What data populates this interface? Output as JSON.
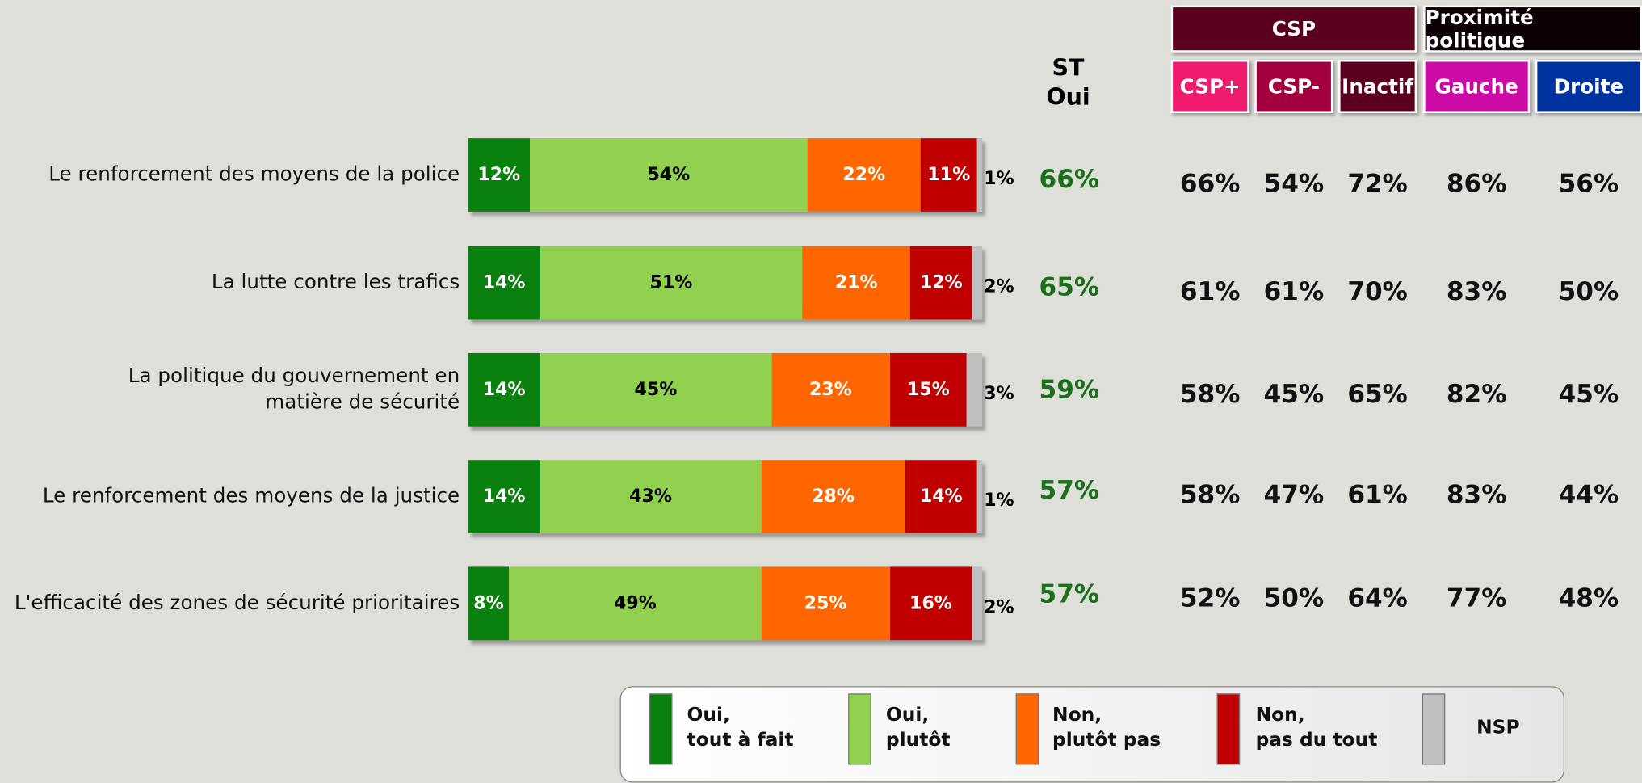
{
  "chart_data": {
    "type": "bar",
    "orientation": "horizontal",
    "stacked": true,
    "categories": [
      "Le renforcement des moyens de la police",
      "La lutte contre les trafics",
      "La politique du gouvernement en\nmatière de sécurité",
      "Le renforcement des moyens de la justice",
      "L'efficacité des zones de sécurité prioritaires"
    ],
    "xlim": [
      0,
      100
    ],
    "series": [
      {
        "name": "Oui,\ntout à fait",
        "color": "#0a800f",
        "label_color": "#ffffff",
        "values": [
          12,
          14,
          14,
          14,
          8
        ],
        "value_labels": [
          "12%",
          "14%",
          "14%",
          "14%",
          "8%"
        ]
      },
      {
        "name": "Oui,\nplutôt",
        "color": "#92d050",
        "label_color": "#000000",
        "values": [
          54,
          51,
          45,
          43,
          49
        ],
        "value_labels": [
          "54%",
          "51%",
          "45%",
          "43%",
          "49%"
        ]
      },
      {
        "name": "Non,\nplutôt pas",
        "color": "#ff6600",
        "label_color": "#ffffff",
        "values": [
          22,
          21,
          23,
          28,
          25
        ],
        "value_labels": [
          "22%",
          "21%",
          "23%",
          "28%",
          "25%"
        ]
      },
      {
        "name": "Non,\npas du tout",
        "color": "#c00000",
        "label_color": "#ffffff",
        "values": [
          11,
          12,
          15,
          14,
          16
        ],
        "value_labels": [
          "11%",
          "12%",
          "15%",
          "14%",
          "16%"
        ]
      },
      {
        "name": "NSP",
        "color": "#bfbfbf",
        "label_color": "#000000",
        "values": [
          1,
          2,
          3,
          1,
          2
        ],
        "value_labels": [
          "1%",
          "2%",
          "3%",
          "1%",
          "2%"
        ]
      }
    ],
    "st_oui": {
      "header": "ST\nOui",
      "color": "#1b6e1b",
      "values": [
        "66%",
        "65%",
        "59%",
        "57%",
        "57%"
      ]
    },
    "table": {
      "groups": [
        {
          "name": "CSP",
          "color": "#5a001e",
          "columns": [
            {
              "name": "CSP+",
              "color": "#ee1b6e"
            },
            {
              "name": "CSP-",
              "color": "#a3003f"
            },
            {
              "name": "Inactif",
              "color": "#5a001e"
            }
          ]
        },
        {
          "name": "Proximité politique",
          "color": "#0d0006",
          "columns": [
            {
              "name": "Gauche",
              "color": "#cc0aa6"
            },
            {
              "name": "Droite",
              "color": "#0033a0"
            }
          ]
        }
      ],
      "rows": [
        [
          "66%",
          "54%",
          "72%",
          "86%",
          "56%"
        ],
        [
          "61%",
          "61%",
          "70%",
          "83%",
          "50%"
        ],
        [
          "58%",
          "45%",
          "65%",
          "82%",
          "45%"
        ],
        [
          "58%",
          "47%",
          "61%",
          "83%",
          "44%"
        ],
        [
          "52%",
          "50%",
          "64%",
          "77%",
          "48%"
        ]
      ]
    }
  }
}
